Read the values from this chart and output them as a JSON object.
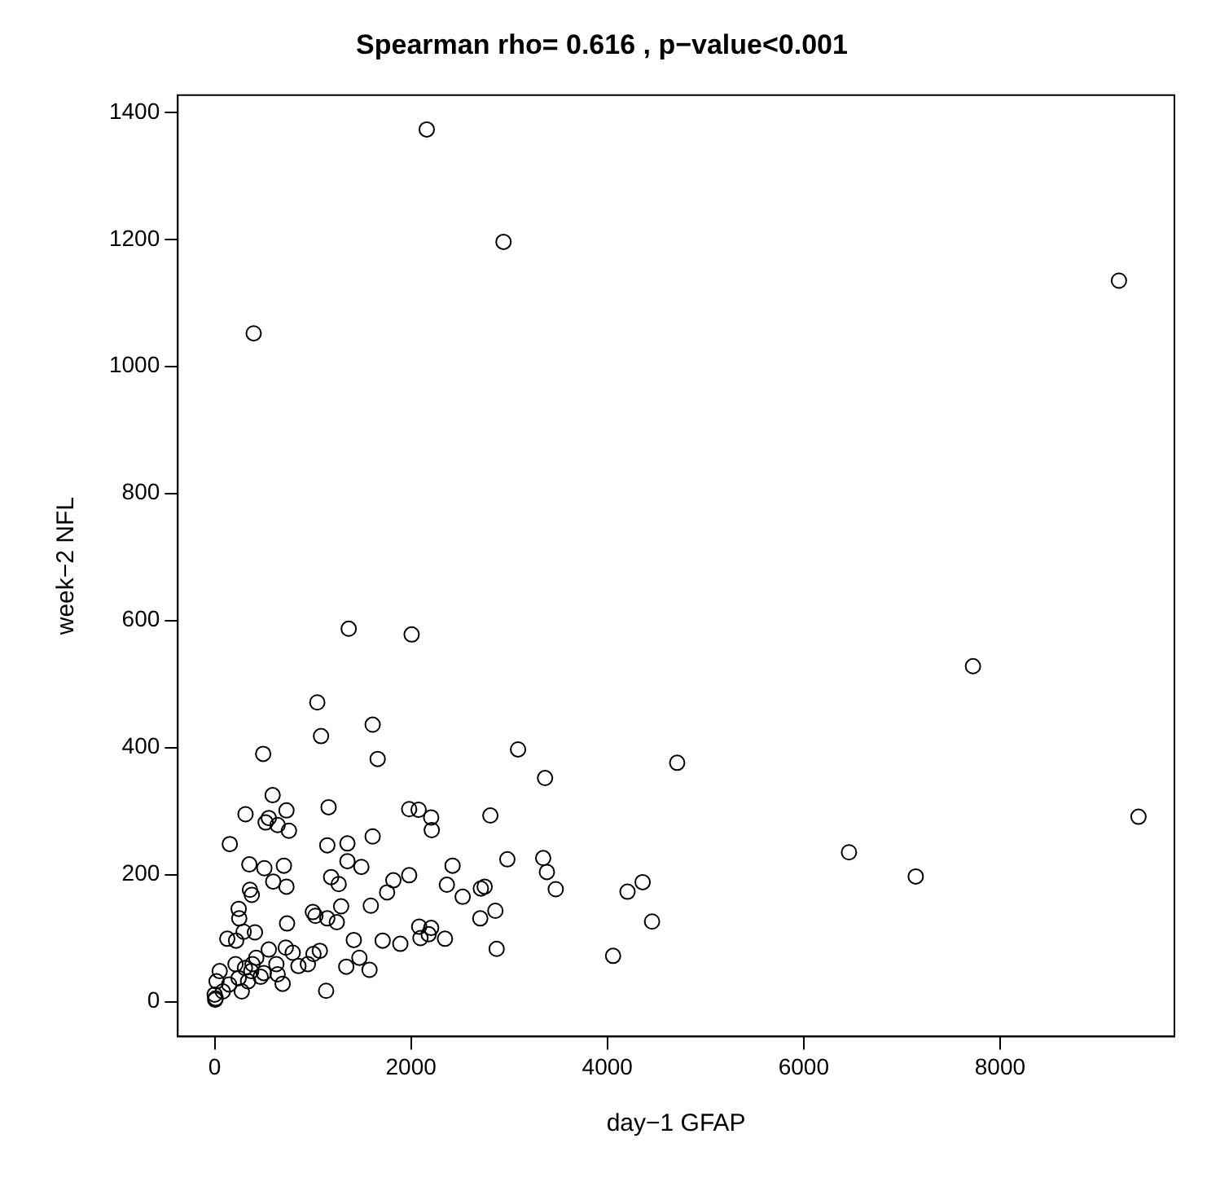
{
  "chart_data": {
    "type": "scatter",
    "title": "Spearman rho= 0.616 , p−value<0.001",
    "xlabel": "day−1 GFAP",
    "ylabel": "week−2 NFL",
    "xlim": [
      -376,
      9776
    ],
    "ylim": [
      -55,
      1427
    ],
    "xticks": [
      0,
      2000,
      4000,
      6000,
      8000
    ],
    "yticks": [
      0,
      200,
      400,
      600,
      800,
      1000,
      1200,
      1400
    ],
    "grid": false,
    "legend": false,
    "marker": "circle",
    "series": [
      {
        "color": "#000000",
        "x": [
          2160,
          2942,
          397,
          9211,
          1365,
          2006,
          7724,
          1045,
          1083,
          1609,
          494,
          1660,
          3090,
          3365,
          4711,
          9410,
          6461,
          7141,
          590,
          314,
          731,
          551,
          519,
          641,
          756,
          1160,
          154,
          1981,
          2077,
          2205,
          2211,
          2808,
          1609,
          1147,
          1352,
          1352,
          1494,
          353,
          506,
          705,
          596,
          731,
          359,
          378,
          1186,
          1263,
          1981,
          1820,
          1756,
          2423,
          2365,
          2526,
          2711,
          2750,
          2981,
          3346,
          3384,
          3474,
          4205,
          4359,
          4455,
          4058,
          2872,
          2859,
          2705,
          2083,
          2205,
          2096,
          2179,
          2346,
          1711,
          1891,
          1417,
          1474,
          1577,
          1340,
          1135,
          1590,
          1288,
          1000,
          1026,
          1147,
          1244,
          737,
          244,
          250,
          128,
          295,
          410,
          218,
          551,
          724,
          795,
          1006,
          1071,
          949,
          853,
          628,
          692,
          641,
          500,
          372,
          308,
          423,
          385,
          212,
          244,
          51,
          19,
          147,
          276,
          0,
          10,
          83,
          340,
          468,
          5
        ],
        "values": [
          1373,
          1196,
          1052,
          1135,
          587,
          578,
          528,
          471,
          418,
          436,
          390,
          382,
          397,
          352,
          376,
          291,
          235,
          197,
          325,
          295,
          301,
          289,
          282,
          278,
          269,
          306,
          248,
          303,
          302,
          290,
          270,
          293,
          260,
          246,
          249,
          221,
          212,
          216,
          210,
          214,
          189,
          181,
          176,
          168,
          196,
          185,
          199,
          191,
          172,
          214,
          184,
          165,
          178,
          181,
          224,
          226,
          204,
          177,
          173,
          188,
          126,
          72,
          83,
          143,
          131,
          118,
          116,
          100,
          106,
          99,
          96,
          91,
          97,
          69,
          50,
          55,
          17,
          151,
          150,
          141,
          135,
          131,
          125,
          123,
          146,
          131,
          99,
          110,
          109,
          96,
          82,
          85,
          77,
          75,
          80,
          59,
          56,
          59,
          28,
          43,
          45,
          48,
          53,
          69,
          59,
          59,
          37,
          48,
          32,
          27,
          16,
          11,
          5,
          16,
          32,
          39,
          3
        ]
      }
    ]
  }
}
